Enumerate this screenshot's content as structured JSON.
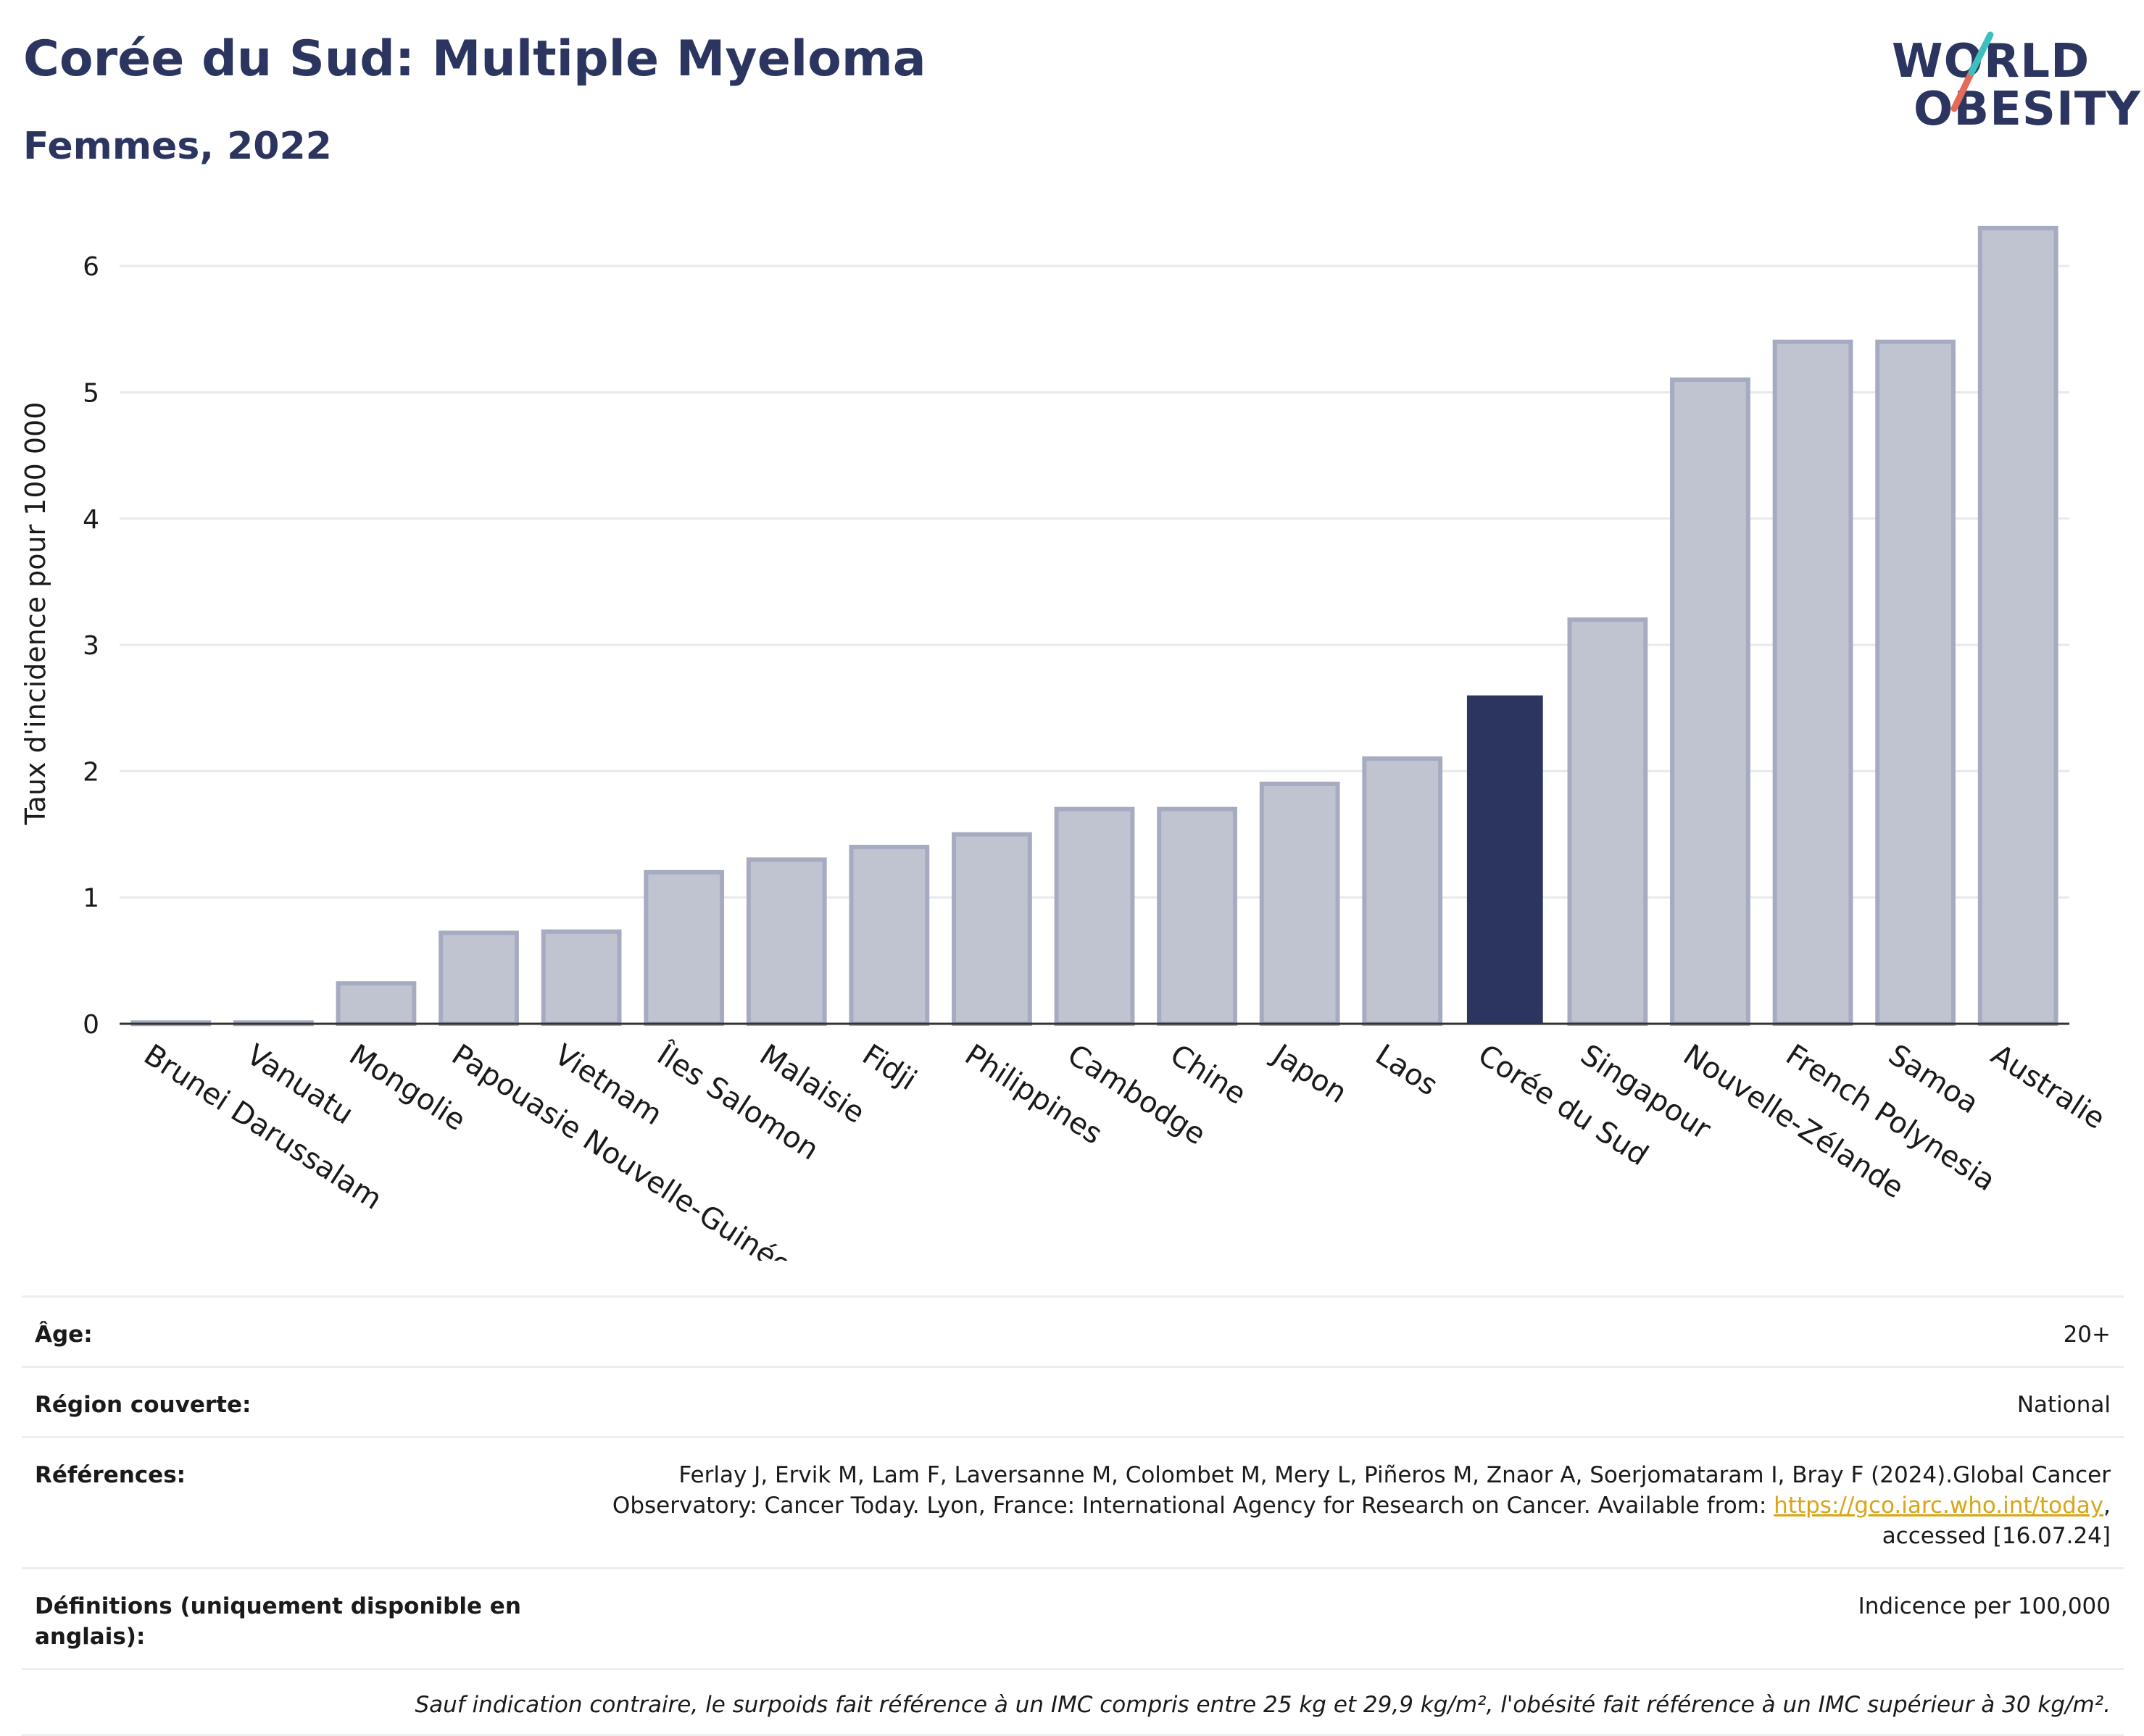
{
  "title": "Corée du Sud: Multiple Myeloma",
  "subtitle": "Femmes, 2022",
  "logo": {
    "line1": "WORLD",
    "line2": "OBESITY"
  },
  "colors": {
    "bar": "#c0c3d0",
    "bar_stroke": "#a6abc1",
    "highlight": "#2b3560",
    "grid": "#e8e9ee",
    "accent_teal": "#3cbfbf",
    "accent_red": "#e46a59"
  },
  "chart_data": {
    "type": "bar",
    "categories": [
      "Brunei Darussalam",
      "Vanuatu",
      "Mongolie",
      "Papouasie Nouvelle-Guinée",
      "Vietnam",
      "Îles Salomon",
      "Malaisie",
      "Fidji",
      "Philippines",
      "Cambodge",
      "Chine",
      "Japon",
      "Laos",
      "Corée du Sud",
      "Singapour",
      "Nouvelle-Zélande",
      "French Polynesia",
      "Samoa",
      "Australie"
    ],
    "values": [
      0.01,
      0.01,
      0.32,
      0.72,
      0.73,
      1.2,
      1.3,
      1.4,
      1.5,
      1.7,
      1.7,
      1.9,
      2.1,
      2.6,
      3.2,
      5.1,
      5.4,
      5.4,
      6.3
    ],
    "highlight": "Corée du Sud",
    "ylabel": "Taux d'incidence pour 100 000",
    "xlabel": "",
    "ylim": [
      0,
      6.5
    ],
    "yticks": [
      0,
      1,
      2,
      3,
      4,
      5,
      6
    ],
    "grid": true
  },
  "info": {
    "age_label": "Âge:",
    "age_value": "20+",
    "region_label": "Région couverte:",
    "region_value": "National",
    "refs_label": "Références:",
    "refs_text": "Ferlay J, Ervik M, Lam F, Laversanne M, Colombet M, Mery L, Piñeros M, Znaor A, Soerjomataram I, Bray F (2024).Global Cancer Observatory: Cancer Today. Lyon, France: International Agency for Research on Cancer. Available from:",
    "refs_link": "https://gco.iarc.who.int/today",
    "refs_tail": ", accessed [16.07.24]",
    "defs_label": "Définitions (uniquement disponible en anglais):",
    "defs_value": "Indicence per 100,000",
    "note": "Sauf indication contraire, le surpoids fait référence à un IMC compris entre 25 kg et 29,9 kg/m², l'obésité fait référence à un IMC supérieur à 30 kg/m²."
  }
}
